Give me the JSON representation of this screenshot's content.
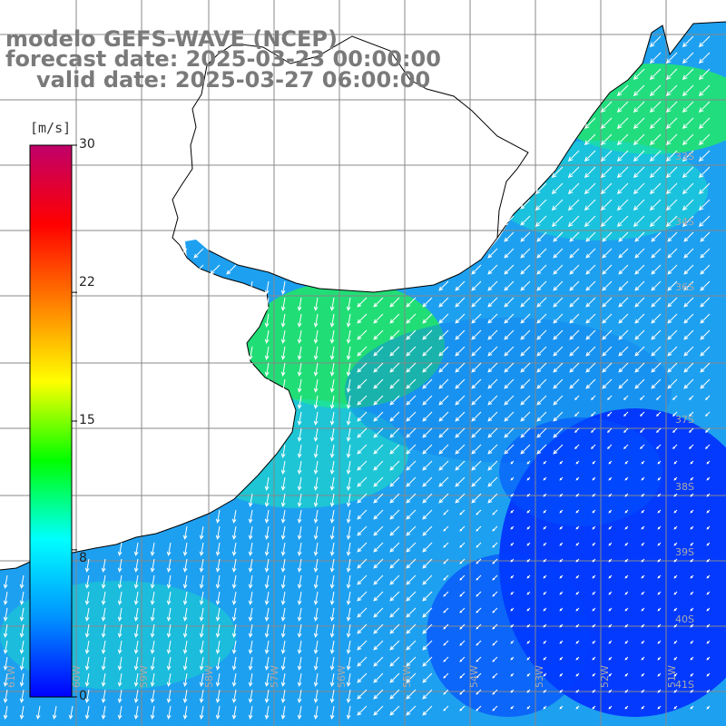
{
  "title": {
    "line1": "modelo GEFS-WAVE (NCEP)",
    "line2": "forecast date: 2025-03-23 00:00:00",
    "line3": "valid date: 2025-03-27 06:00:00"
  },
  "colorbar": {
    "unit": "[m/s]",
    "min": 0,
    "max": 30,
    "ticks": [
      {
        "label": "30",
        "value": 30
      },
      {
        "label": "22",
        "value": 22
      },
      {
        "label": "15",
        "value": 15
      },
      {
        "label": "8",
        "value": 8
      },
      {
        "label": "0",
        "value": 0
      }
    ],
    "stops": [
      "#0000ff",
      "#0091ff",
      "#00ffff",
      "#00ff00",
      "#ffff00",
      "#ff7f00",
      "#ff0000",
      "#c0006a"
    ]
  },
  "lat_labels": [
    "33S",
    "34S",
    "36S",
    "37S",
    "38S",
    "39S",
    "40S",
    "41S"
  ],
  "lon_labels": [
    "61W",
    "60W",
    "59W",
    "58W",
    "57W",
    "56W",
    "55W",
    "54W",
    "53W",
    "52W",
    "51W"
  ],
  "map": {
    "water_color": "#1ea0f0",
    "land_color": "#ffffff",
    "grid_color": "#888888",
    "coast_color": "#000000",
    "arrow_color": "#ffffff"
  }
}
